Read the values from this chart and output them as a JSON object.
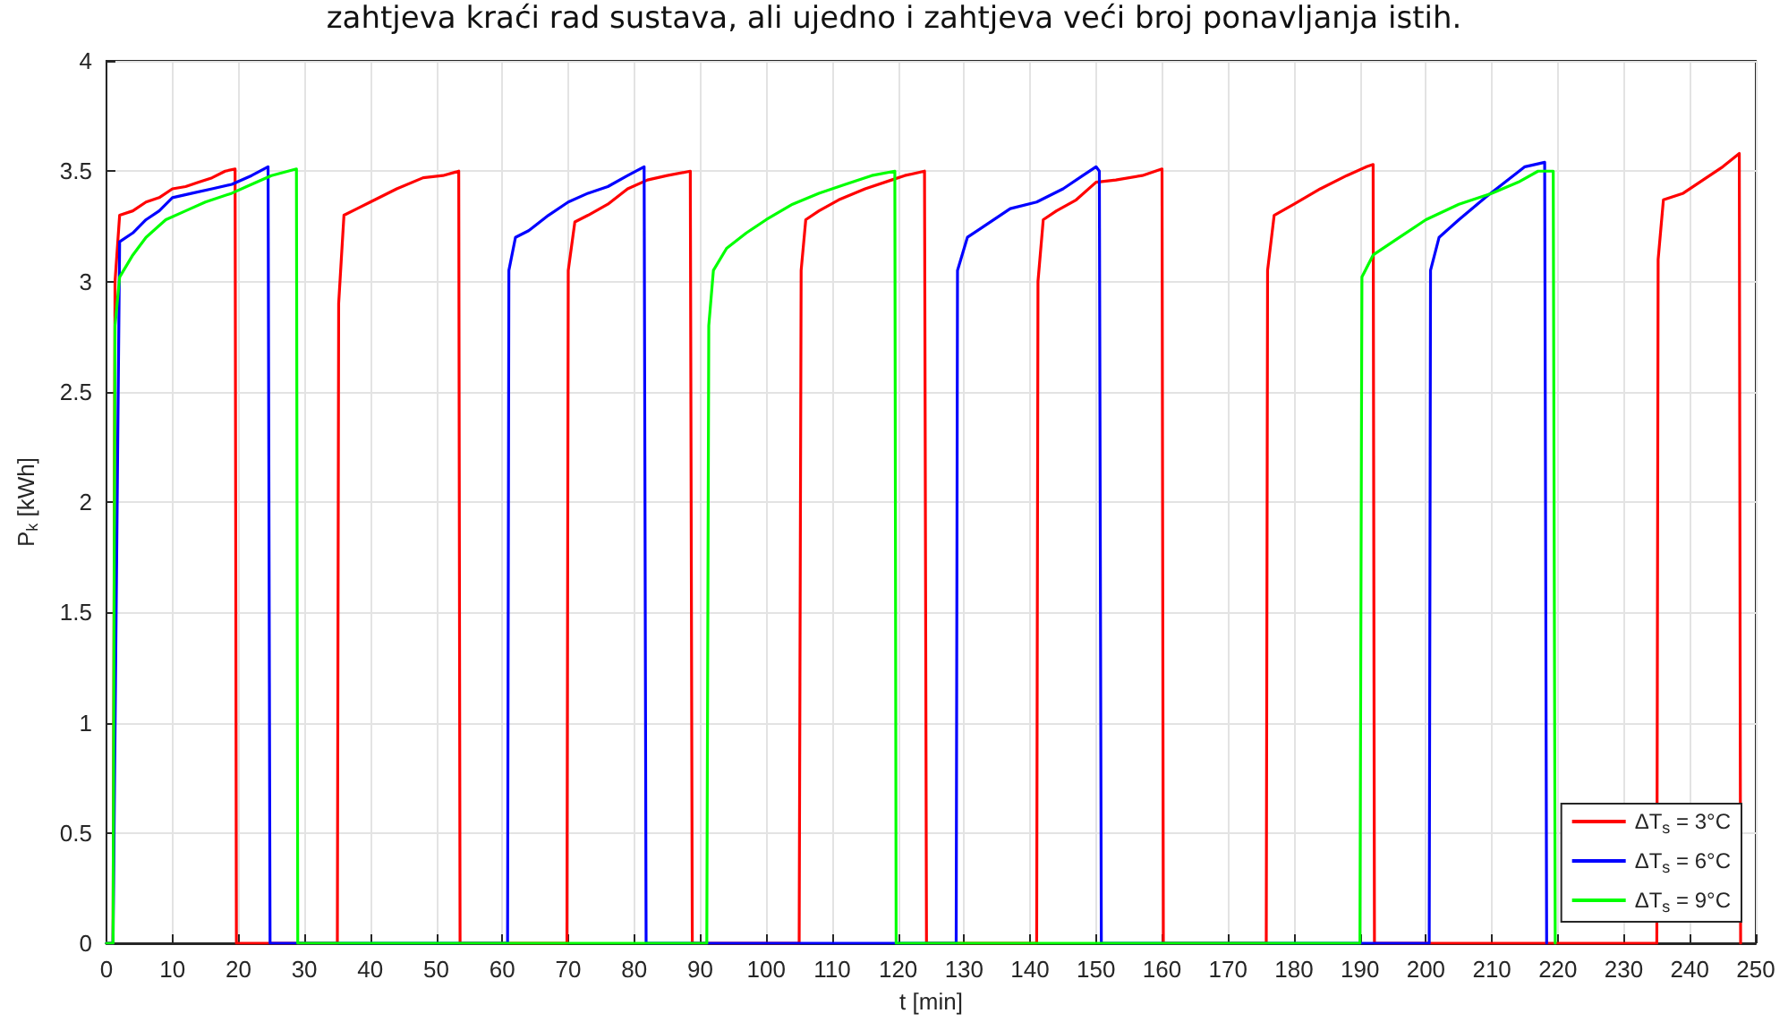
{
  "chart_data": {
    "type": "line",
    "xlabel": "t [min]",
    "ylabel": "P$_{k}$ [kWh]",
    "annotations": [
      "zahtjeva kraći rad sustava, ali ujedno i zahtjeva veći broj ponavljanja istih."
    ],
    "xlim": [
      0,
      250
    ],
    "xticks": [
      0,
      10,
      20,
      30,
      40,
      50,
      60,
      70,
      80,
      90,
      100,
      110,
      120,
      130,
      140,
      150,
      160,
      170,
      180,
      190,
      200,
      210,
      220,
      230,
      240,
      250
    ],
    "ylim": [
      0,
      4
    ],
    "yticks": [
      0,
      0.5,
      1,
      1.5,
      2,
      2.5,
      3,
      3.5,
      4
    ],
    "grid": true,
    "legend": "bottom right",
    "marker": "none",
    "line_style": "solid",
    "series": [
      {
        "name": "ΔT$_{s}$ = 3°C",
        "color": "#ff0000",
        "x": [
          0,
          1,
          1.3,
          2,
          4,
          6,
          8,
          10,
          12,
          14,
          16,
          18,
          19.5,
          19.7,
          35,
          35.2,
          36,
          38,
          40,
          44,
          48,
          51,
          53.4,
          53.6,
          69.8,
          70,
          71,
          73,
          76,
          79,
          82,
          85,
          88.5,
          88.8,
          105,
          105.3,
          106,
          108,
          111,
          115,
          119,
          121,
          124,
          124.3,
          141,
          141.2,
          142,
          144,
          147,
          150,
          153,
          157,
          160,
          160.2,
          175.8,
          176,
          177,
          180,
          184,
          188,
          191,
          192,
          192.2,
          235,
          235.2,
          236,
          239,
          242,
          245,
          247.5,
          247.7
        ],
        "values": [
          0,
          0,
          3.0,
          3.3,
          3.32,
          3.36,
          3.38,
          3.42,
          3.43,
          3.45,
          3.47,
          3.5,
          3.51,
          0,
          0,
          2.9,
          3.3,
          3.33,
          3.36,
          3.42,
          3.47,
          3.48,
          3.5,
          0,
          0,
          3.05,
          3.27,
          3.3,
          3.35,
          3.42,
          3.46,
          3.48,
          3.5,
          0,
          0,
          3.05,
          3.28,
          3.32,
          3.37,
          3.42,
          3.46,
          3.48,
          3.5,
          0,
          0,
          3.0,
          3.28,
          3.32,
          3.37,
          3.45,
          3.46,
          3.48,
          3.51,
          0,
          0,
          3.05,
          3.3,
          3.35,
          3.42,
          3.48,
          3.52,
          3.53,
          0,
          0,
          3.1,
          3.37,
          3.4,
          3.46,
          3.52,
          3.58,
          0
        ]
      },
      {
        "name": "ΔT$_{s}$ = 6°C",
        "color": "#0000ff",
        "x": [
          0,
          1,
          2,
          4,
          6,
          8,
          10,
          13,
          16,
          19,
          22,
          24.5,
          24.8,
          60.8,
          61,
          62,
          64,
          67,
          70,
          73,
          76,
          79,
          81.5,
          81.8,
          128.8,
          129,
          130.5,
          133,
          137,
          141,
          145,
          148,
          150,
          150.5,
          150.8,
          200.5,
          200.7,
          202,
          205,
          209,
          212,
          215,
          218,
          218.3
        ],
        "values": [
          0,
          0,
          3.18,
          3.22,
          3.28,
          3.32,
          3.38,
          3.4,
          3.42,
          3.44,
          3.48,
          3.52,
          0,
          0,
          3.05,
          3.2,
          3.23,
          3.3,
          3.36,
          3.4,
          3.43,
          3.48,
          3.52,
          0,
          0,
          3.05,
          3.2,
          3.25,
          3.33,
          3.36,
          3.42,
          3.48,
          3.52,
          3.5,
          0,
          0,
          3.05,
          3.2,
          3.28,
          3.38,
          3.45,
          3.52,
          3.54,
          0
        ]
      },
      {
        "name": "ΔT$_{s}$ = 9°C",
        "color": "#00ff00",
        "x": [
          0,
          1,
          1.3,
          2,
          4,
          6,
          9,
          12,
          15,
          19,
          22,
          25,
          28.8,
          29,
          91,
          91.3,
          92,
          94,
          97,
          100,
          104,
          108,
          112,
          116,
          119.5,
          119.7,
          190,
          190.3,
          192,
          196,
          200,
          205,
          210,
          214,
          217,
          219.3,
          219.6
        ],
        "values": [
          0,
          0,
          2.8,
          3.02,
          3.12,
          3.2,
          3.28,
          3.32,
          3.36,
          3.4,
          3.44,
          3.48,
          3.51,
          0,
          0,
          2.8,
          3.05,
          3.15,
          3.22,
          3.28,
          3.35,
          3.4,
          3.44,
          3.48,
          3.5,
          0,
          0,
          3.02,
          3.12,
          3.2,
          3.28,
          3.35,
          3.4,
          3.45,
          3.5,
          3.5,
          0
        ]
      }
    ]
  }
}
